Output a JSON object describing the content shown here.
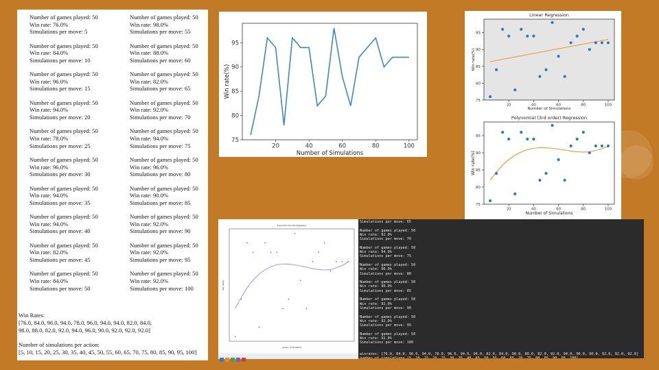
{
  "document": {
    "games_label": "Number of games played: 50",
    "entries": [
      {
        "win": "Win rate: 76.0%",
        "sims": "Simulations per move: 5"
      },
      {
        "win": "Win rate: 98.0%",
        "sims": "Simulations per move: 55"
      },
      {
        "win": "Win rate: 84.0%",
        "sims": "Simulations per move: 10"
      },
      {
        "win": "Win rate: 88.0%",
        "sims": "Simulations per move: 60"
      },
      {
        "win": "Win rate: 96.0%",
        "sims": "Simulations per move: 15"
      },
      {
        "win": "Win rate: 82.0%",
        "sims": "Simulations per move: 65"
      },
      {
        "win": "Win rate: 94.0%",
        "sims": "Simulations per move: 20"
      },
      {
        "win": "Win rate: 92.0%",
        "sims": "Simulations per move: 70"
      },
      {
        "win": "Win rate: 78.0%",
        "sims": "Simulations per move: 25"
      },
      {
        "win": "Win rate: 94.0%",
        "sims": "Simulations per move: 75"
      },
      {
        "win": "Win rate: 96.0%",
        "sims": "Simulations per move: 30"
      },
      {
        "win": "Win rate: 96.0%",
        "sims": "Simulations per move: 80"
      },
      {
        "win": "Win rate: 94.0%",
        "sims": "Simulations per move: 35"
      },
      {
        "win": "Win rate: 90.0%",
        "sims": "Simulations per move: 85"
      },
      {
        "win": "Win rate: 94.0%",
        "sims": "Simulations per move: 40"
      },
      {
        "win": "Win rate: 92.0%",
        "sims": "Simulations per move: 90"
      },
      {
        "win": "Win rate: 82.0%",
        "sims": "Simulations per move: 45"
      },
      {
        "win": "Win rate: 92.0%",
        "sims": "Simulations per move: 95"
      },
      {
        "win": "Win rate: 84.0%",
        "sims": "Simulations per move: 50"
      },
      {
        "win": "Win rate: 92.0%",
        "sims": "Simulations per move: 100"
      }
    ],
    "win_rates_heading": "Win Rates:",
    "win_rates_line1": "[76.0, 84.0, 96.0, 94.0, 78.0, 96.0, 94.0, 94.0, 82.0, 84.0,",
    "win_rates_line2": " 98.0, 88.0, 82.0, 92.0, 94.0, 96.0, 90.0, 92.0, 92.0, 92.0]",
    "sims_heading": "Number of simulations per action:",
    "sims_line": "[5, 10, 15, 20, 25, 30, 35, 40, 45, 50, 55, 60, 65, 70, 75, 80, 85, 90, 95, 100]"
  },
  "chart_data": [
    {
      "type": "line",
      "x": [
        5,
        10,
        15,
        20,
        25,
        30,
        35,
        40,
        45,
        50,
        55,
        60,
        65,
        70,
        75,
        80,
        85,
        90,
        95,
        100
      ],
      "y": [
        76,
        84,
        96,
        94,
        78,
        96,
        94,
        94,
        82,
        84,
        98,
        88,
        82,
        92,
        94,
        96,
        90,
        92,
        92,
        92
      ],
      "xlabel": "Number of Simulations",
      "ylabel": "Win rate(%)",
      "xticks": [
        "20",
        "40",
        "60",
        "80",
        "100"
      ],
      "yticks": [
        "75",
        "80",
        "85",
        "90",
        "95"
      ],
      "xlim": [
        0,
        105
      ],
      "ylim": [
        75,
        99
      ],
      "color": "#3f86c1",
      "grid": false
    },
    {
      "type": "scatter",
      "title": "Linear Regression",
      "x": [
        5,
        10,
        15,
        20,
        25,
        30,
        35,
        40,
        45,
        50,
        55,
        60,
        65,
        70,
        75,
        80,
        85,
        90,
        95,
        100
      ],
      "y": [
        76,
        84,
        96,
        94,
        78,
        96,
        94,
        94,
        82,
        84,
        98,
        88,
        82,
        92,
        94,
        96,
        90,
        92,
        92,
        92
      ],
      "fit": {
        "x": [
          5,
          100
        ],
        "y": [
          86.4,
          93.0
        ]
      },
      "xlabel": "Number of Simulations",
      "ylabel": "Win rate(%)",
      "xticks": [
        "20",
        "40",
        "60",
        "80",
        "100"
      ],
      "yticks": [
        "75",
        "80",
        "85",
        "90",
        "95"
      ],
      "xlim": [
        0,
        105
      ],
      "ylim": [
        75,
        99
      ],
      "point_color": "#2a7bbf",
      "fit_color": "#f0922b",
      "background": "#e5e5e5"
    },
    {
      "type": "scatter",
      "title": "Polynomial (3rd order) Regression",
      "x": [
        5,
        10,
        15,
        20,
        25,
        30,
        35,
        40,
        45,
        50,
        55,
        60,
        65,
        70,
        75,
        80,
        85,
        90,
        95,
        100
      ],
      "y": [
        76,
        84,
        96,
        94,
        78,
        96,
        94,
        94,
        82,
        84,
        98,
        88,
        82,
        92,
        94,
        96,
        90,
        92,
        92,
        92
      ],
      "fit": {
        "x": [
          5,
          15,
          25,
          35,
          45,
          55,
          65,
          75,
          85,
          95,
          100
        ],
        "y": [
          82.0,
          86.4,
          89.3,
          90.9,
          91.5,
          91.3,
          90.8,
          90.3,
          90.3,
          91.2,
          92.0
        ]
      },
      "xlabel": "Number of Simulations",
      "ylabel": "Win rate(%)",
      "xticks": [
        "20",
        "40",
        "60",
        "80",
        "100"
      ],
      "yticks": [
        "75",
        "80",
        "85",
        "90",
        "95"
      ],
      "xlim": [
        0,
        105
      ],
      "ylim": [
        75,
        99
      ],
      "point_color": "#2a7bbf",
      "fit_color": "#f0922b",
      "background": "#ffffff"
    },
    {
      "type": "scatter",
      "title": "Polynomial (3rd order) Regression",
      "x": [
        5,
        10,
        15,
        20,
        25,
        30,
        35,
        40,
        45,
        50,
        55,
        60,
        65,
        70,
        75,
        80,
        85,
        90,
        95,
        100
      ],
      "y": [
        76,
        84,
        96,
        94,
        78,
        96,
        94,
        94,
        82,
        84,
        98,
        88,
        82,
        92,
        94,
        96,
        90,
        92,
        92,
        92
      ],
      "fit": {
        "x": [
          5,
          15,
          25,
          35,
          45,
          55,
          65,
          75,
          85,
          95,
          100
        ],
        "y": [
          82.0,
          86.4,
          89.3,
          90.9,
          91.5,
          91.3,
          90.8,
          90.3,
          90.3,
          91.2,
          92.0
        ]
      },
      "xlabel": "number of simulations",
      "ylabel": "Win rate(%)",
      "xlim": [
        0,
        105
      ],
      "ylim": [
        75,
        99
      ],
      "point_color": "#444444",
      "fit_color": "#8c83d4",
      "background": "#ffffff"
    }
  ],
  "terminal": {
    "lines": [
      "Simulations per move: 65",
      "",
      "Number of games played: 50",
      "Win rate: 92.0%",
      "Simulations per move: 70",
      "",
      "Number of games played: 50",
      "Win rate: 94.0%",
      "Simulations per move: 75",
      "",
      "Number of games played: 50",
      "Win rate: 96.0%",
      "Simulations per move: 80",
      "",
      "Number of games played: 50",
      "Win rate: 90.0%",
      "Simulations per move: 85",
      "",
      "Number of games played: 50",
      "Win rate: 92.0%",
      "Simulations per move: 90",
      "",
      "Number of games played: 50",
      "Win rate: 92.0%",
      "Simulations per move: 95",
      "",
      "Number of games played: 50",
      "Win rate: 92.0%",
      "Simulations per move: 100",
      ""
    ],
    "winrates_line": "winrates: [76.0, 84.0, 96.0, 94.0, 78.0, 96.0, 94.0, 94.0, 82.0, 84.0, 98.0, 88.0, 82.0, 92.0, 94.0, 96.0, 90.0, 92.0, 92.0, 92.0]",
    "sims_line": "number of simulations [5, 10, 15, 20, 25, 30, 35, 40, 45, 50, 55, 60, 65, 70, 75, 80, 85, 90, 95, 100]"
  },
  "colors": {
    "background": "#c37a26",
    "terminal_bg": "#2b2b2b"
  }
}
